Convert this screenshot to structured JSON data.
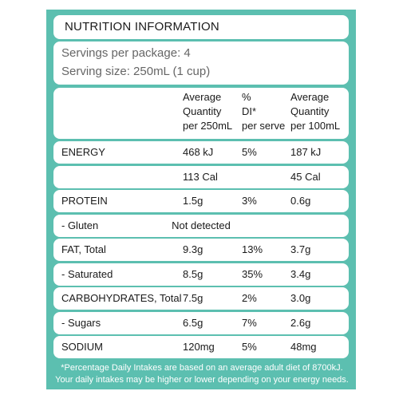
{
  "title": "NUTRITION INFORMATION",
  "servings_per_package": "Servings per package: 4",
  "serving_size": "Serving size: 250mL (1 cup)",
  "header": {
    "col1": [
      "Average",
      "Quantity",
      "per 250mL"
    ],
    "col2": [
      "%",
      "DI*",
      "per serve"
    ],
    "col3": [
      "Average",
      "Quantity",
      "per 100mL"
    ]
  },
  "rows": [
    {
      "label": "ENERGY",
      "per_serve": "468 kJ",
      "di": "5%",
      "per_100ml": "187 kJ"
    },
    {
      "label": "",
      "per_serve": "113 Cal",
      "di": "",
      "per_100ml": "45 Cal"
    },
    {
      "label": "PROTEIN",
      "per_serve": "1.5g",
      "di": "3%",
      "per_100ml": "0.6g"
    },
    {
      "label": "- Gluten",
      "merged": "Not detected"
    },
    {
      "label": "FAT, Total",
      "per_serve": "9.3g",
      "di": "13%",
      "per_100ml": "3.7g"
    },
    {
      "label": "- Saturated",
      "per_serve": "8.5g",
      "di": "35%",
      "per_100ml": "3.4g"
    },
    {
      "label": "CARBOHYDRATES, Total",
      "per_serve": "7.5g",
      "di": "2%",
      "per_100ml": "3.0g"
    },
    {
      "label": "- Sugars",
      "per_serve": "6.5g",
      "di": "7%",
      "per_100ml": "2.6g"
    },
    {
      "label": "SODIUM",
      "per_serve": "120mg",
      "di": "5%",
      "per_100ml": "48mg"
    }
  ],
  "footnote": [
    "*Percentage Daily Intakes are based on an average adult diet of 8700kJ.",
    "Your daily intakes may be higher or lower depending on your energy needs."
  ],
  "colors": {
    "panel": "#5cbfb0",
    "box": "#ffffff",
    "text": "#1a1a1a",
    "muted": "#666666"
  }
}
